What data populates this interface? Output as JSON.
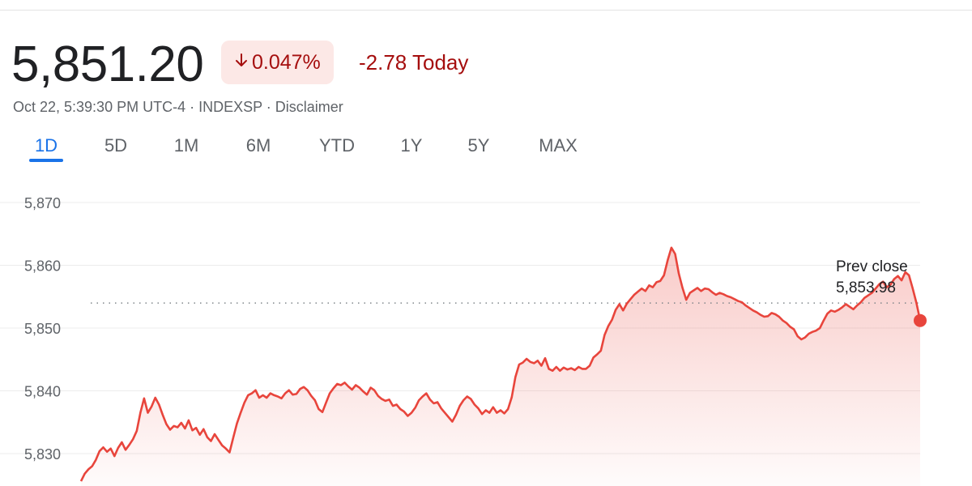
{
  "header": {
    "price": "5,851.20",
    "change_pct": "0.047%",
    "arrow_icon": "arrow-down-icon",
    "change_today": "-2.78 Today",
    "meta": "Oct 22, 5:39:30 PM UTC-4 · INDEXSP · Disclaimer"
  },
  "tabs": [
    "1D",
    "5D",
    "1M",
    "6M",
    "YTD",
    "1Y",
    "5Y",
    "MAX"
  ],
  "active_tab": "1D",
  "colors": {
    "negative": "#a50e0e",
    "line": "#e8453c",
    "badge_bg": "#fce8e6",
    "accent": "#1a73e8"
  },
  "chart_data": {
    "type": "line",
    "y_ticks": [
      "5,870",
      "5,860",
      "5,850",
      "5,840",
      "5,830"
    ],
    "ylim": [
      5825.5,
      5872
    ],
    "grid": true,
    "prev_close": {
      "label": "Prev close",
      "value_label": "5,853.98",
      "value": 5853.98
    },
    "series": [
      {
        "values": [
          5825.6,
          5826.8,
          5827.5,
          5828.0,
          5829.0,
          5830.4,
          5831.0,
          5830.3,
          5830.8,
          5829.6,
          5830.9,
          5831.8,
          5830.6,
          5831.4,
          5832.3,
          5833.6,
          5836.5,
          5838.8,
          5836.5,
          5837.5,
          5838.9,
          5837.8,
          5836.2,
          5834.7,
          5833.8,
          5834.4,
          5834.2,
          5834.9,
          5834.0,
          5835.3,
          5833.7,
          5834.1,
          5833.0,
          5833.9,
          5832.6,
          5832.0,
          5833.1,
          5832.2,
          5831.3,
          5830.8,
          5830.2,
          5832.5,
          5834.8,
          5836.5,
          5838.1,
          5839.3,
          5839.6,
          5840.1,
          5838.9,
          5839.3,
          5838.9,
          5839.6,
          5839.3,
          5839.1,
          5838.8,
          5839.6,
          5840.1,
          5839.4,
          5839.5,
          5840.3,
          5840.6,
          5840.1,
          5839.2,
          5838.5,
          5837.1,
          5836.6,
          5838.1,
          5839.6,
          5840.4,
          5841.1,
          5840.9,
          5841.3,
          5840.7,
          5840.2,
          5840.9,
          5840.5,
          5839.9,
          5839.4,
          5840.5,
          5840.1,
          5839.2,
          5838.7,
          5838.4,
          5838.6,
          5837.6,
          5837.8,
          5837.1,
          5836.7,
          5836.0,
          5836.5,
          5837.3,
          5838.5,
          5839.1,
          5839.6,
          5838.6,
          5838.0,
          5838.2,
          5837.2,
          5836.5,
          5835.8,
          5835.1,
          5836.2,
          5837.6,
          5838.5,
          5839.1,
          5838.7,
          5837.8,
          5837.2,
          5836.3,
          5836.9,
          5836.5,
          5837.4,
          5836.5,
          5836.9,
          5836.4,
          5837.1,
          5839.0,
          5842.2,
          5844.2,
          5844.5,
          5845.1,
          5844.6,
          5844.4,
          5844.8,
          5844.0,
          5845.2,
          5843.5,
          5843.2,
          5843.8,
          5843.2,
          5843.7,
          5843.4,
          5843.6,
          5843.3,
          5843.8,
          5843.5,
          5843.5,
          5844.0,
          5845.3,
          5845.8,
          5846.4,
          5848.9,
          5850.3,
          5851.3,
          5852.9,
          5853.8,
          5852.8,
          5853.9,
          5854.6,
          5855.3,
          5855.8,
          5856.3,
          5855.9,
          5856.8,
          5856.5,
          5857.3,
          5857.5,
          5858.4,
          5860.8,
          5862.8,
          5861.8,
          5858.7,
          5856.4,
          5854.5,
          5855.6,
          5856.0,
          5856.4,
          5855.9,
          5856.3,
          5856.2,
          5855.7,
          5855.3,
          5855.6,
          5855.4,
          5855.1,
          5854.9,
          5854.6,
          5854.3,
          5854.1,
          5853.6,
          5853.2,
          5852.8,
          5852.5,
          5852.1,
          5851.8,
          5851.9,
          5852.4,
          5852.2,
          5851.8,
          5851.2,
          5850.8,
          5850.2,
          5849.8,
          5848.7,
          5848.2,
          5848.5,
          5849.1,
          5849.4,
          5849.6,
          5850.0,
          5851.2,
          5852.3,
          5852.8,
          5852.6,
          5852.9,
          5853.3,
          5853.8,
          5853.4,
          5853.0,
          5853.6,
          5854.1,
          5854.8,
          5855.2,
          5855.6,
          5856.3,
          5857.0,
          5857.4,
          5856.5,
          5856.9,
          5857.8,
          5858.3,
          5857.6,
          5858.9,
          5858.4,
          5856.3,
          5854.0,
          5851.2
        ]
      }
    ]
  }
}
